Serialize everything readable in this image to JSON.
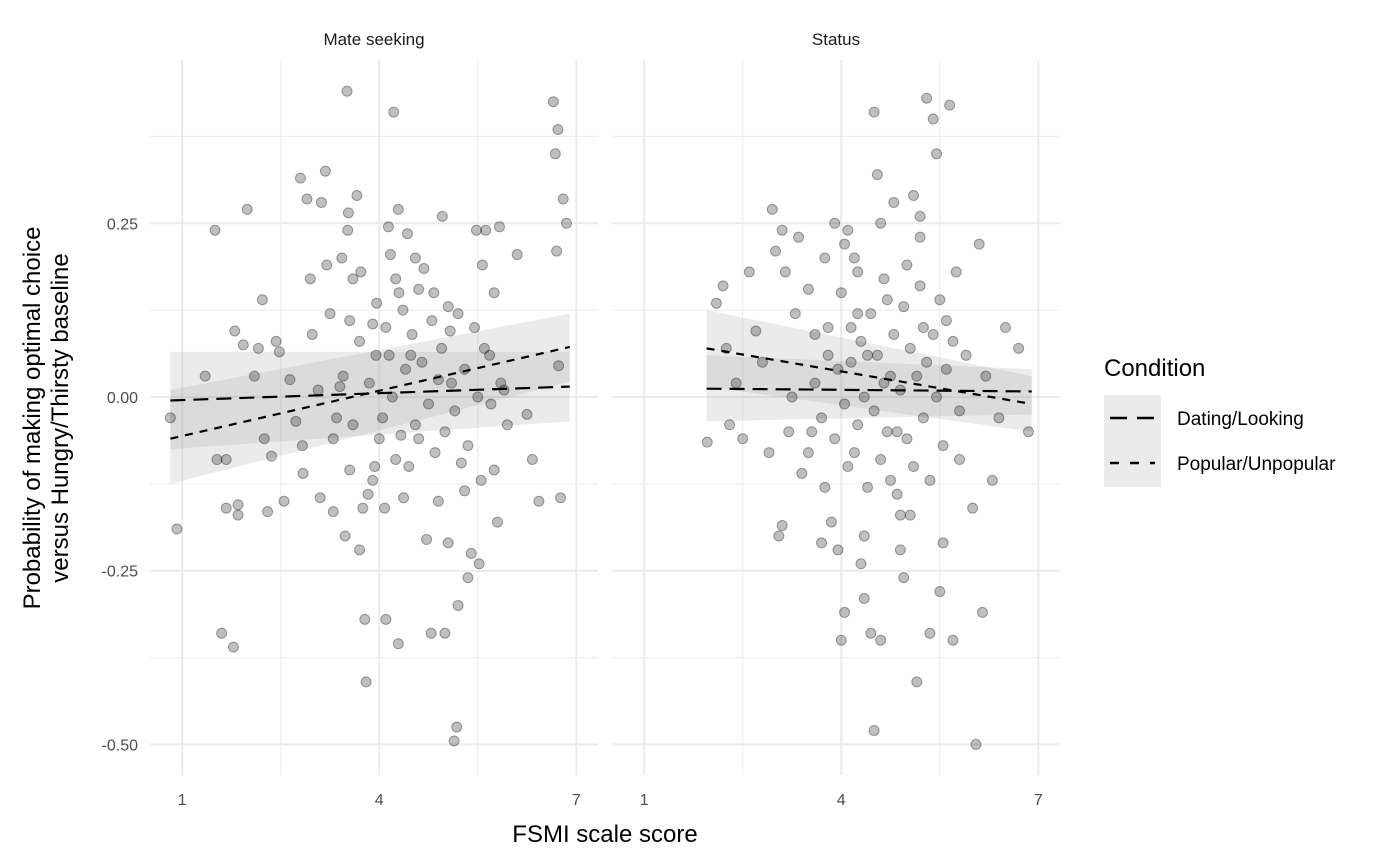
{
  "chart_data": {
    "type": "scatter",
    "xlabel": "FSMI scale score",
    "ylabel_lines": [
      "Probability of making optimal choice",
      "versus Hungry/Thirsty baseline"
    ],
    "xlim": [
      0.51,
      7.33
    ],
    "ylim": [
      -0.544,
      0.485
    ],
    "x_ticks": [
      1,
      4,
      7
    ],
    "x_tick_labels": [
      "1",
      "4",
      "7"
    ],
    "y_ticks": [
      -0.5,
      -0.25,
      0,
      0.25
    ],
    "y_tick_labels": [
      "-0.50",
      "-0.25",
      "0.00",
      "0.25"
    ],
    "grid": true,
    "legend": {
      "title": "Condition",
      "position": "right",
      "entries": [
        {
          "label": "Dating/Looking",
          "dash": "long"
        },
        {
          "label": "Popular/Unpopular",
          "dash": "short"
        }
      ]
    },
    "panels": [
      {
        "title": "Mate seeking",
        "points": [
          [
            0.82,
            -0.03
          ],
          [
            0.92,
            -0.19
          ],
          [
            1.35,
            0.03
          ],
          [
            1.5,
            0.24
          ],
          [
            1.53,
            -0.09
          ],
          [
            1.6,
            -0.34
          ],
          [
            1.67,
            -0.09
          ],
          [
            1.67,
            -0.16
          ],
          [
            1.78,
            -0.36
          ],
          [
            1.8,
            0.095
          ],
          [
            1.85,
            -0.155
          ],
          [
            1.85,
            -0.17
          ],
          [
            1.93,
            0.075
          ],
          [
            1.99,
            0.27
          ],
          [
            2.1,
            0.03
          ],
          [
            2.16,
            0.07
          ],
          [
            2.22,
            0.14
          ],
          [
            2.25,
            -0.06
          ],
          [
            2.3,
            -0.165
          ],
          [
            2.36,
            -0.085
          ],
          [
            2.43,
            0.08
          ],
          [
            2.48,
            0.065
          ],
          [
            2.55,
            -0.15
          ],
          [
            2.64,
            0.025
          ],
          [
            2.73,
            -0.035
          ],
          [
            2.8,
            0.315
          ],
          [
            2.83,
            -0.07
          ],
          [
            2.84,
            -0.11
          ],
          [
            2.9,
            0.285
          ],
          [
            2.95,
            0.17
          ],
          [
            2.98,
            0.09
          ],
          [
            3.07,
            0.01
          ],
          [
            3.1,
            -0.145
          ],
          [
            3.12,
            0.28
          ],
          [
            3.18,
            0.325
          ],
          [
            3.2,
            0.19
          ],
          [
            3.3,
            -0.165
          ],
          [
            3.35,
            -0.03
          ],
          [
            3.4,
            0.015
          ],
          [
            3.43,
            0.2
          ],
          [
            3.48,
            -0.2
          ],
          [
            3.51,
            0.44
          ],
          [
            3.52,
            0.24
          ],
          [
            3.53,
            0.265
          ],
          [
            3.55,
            -0.105
          ],
          [
            3.6,
            0.17
          ],
          [
            3.66,
            0.29
          ],
          [
            3.7,
            -0.22
          ],
          [
            3.72,
            0.18
          ],
          [
            3.75,
            -0.16
          ],
          [
            3.78,
            -0.32
          ],
          [
            3.8,
            -0.41
          ],
          [
            3.83,
            -0.14
          ],
          [
            3.9,
            0.105
          ],
          [
            3.93,
            -0.1
          ],
          [
            3.96,
            0.135
          ],
          [
            4.0,
            -0.06
          ],
          [
            4.08,
            -0.16
          ],
          [
            4.1,
            -0.32
          ],
          [
            4.14,
            0.245
          ],
          [
            4.17,
            0.205
          ],
          [
            4.22,
            0.41
          ],
          [
            4.25,
            0.17
          ],
          [
            4.29,
            0.27
          ],
          [
            4.29,
            -0.355
          ],
          [
            4.33,
            -0.055
          ],
          [
            4.36,
            0.125
          ],
          [
            4.37,
            -0.145
          ],
          [
            4.43,
            0.235
          ],
          [
            4.48,
            0.06
          ],
          [
            4.55,
            -0.04
          ],
          [
            4.6,
            0.155
          ],
          [
            4.68,
            0.185
          ],
          [
            4.72,
            -0.205
          ],
          [
            4.79,
            -0.34
          ],
          [
            4.83,
            0.15
          ],
          [
            4.9,
            0.025
          ],
          [
            4.96,
            0.26
          ],
          [
            5.0,
            -0.34
          ],
          [
            5.05,
            -0.21
          ],
          [
            5.08,
            0.095
          ],
          [
            5.14,
            -0.495
          ],
          [
            5.18,
            -0.475
          ],
          [
            5.2,
            -0.3
          ],
          [
            5.25,
            -0.095
          ],
          [
            5.3,
            -0.135
          ],
          [
            5.35,
            -0.26
          ],
          [
            5.4,
            -0.225
          ],
          [
            5.48,
            0.24
          ],
          [
            5.52,
            -0.24
          ],
          [
            5.57,
            0.19
          ],
          [
            5.62,
            0.24
          ],
          [
            5.68,
            0.06
          ],
          [
            5.75,
            -0.105
          ],
          [
            5.8,
            -0.18
          ],
          [
            5.83,
            0.245
          ],
          [
            5.9,
            0.01
          ],
          [
            5.95,
            -0.04
          ],
          [
            6.1,
            0.205
          ],
          [
            6.25,
            -0.025
          ],
          [
            6.33,
            -0.09
          ],
          [
            6.43,
            -0.15
          ],
          [
            6.65,
            0.425
          ],
          [
            6.68,
            0.35
          ],
          [
            6.7,
            0.21
          ],
          [
            6.72,
            0.385
          ],
          [
            6.73,
            0.045
          ],
          [
            6.76,
            -0.145
          ],
          [
            6.8,
            0.285
          ],
          [
            6.85,
            0.25
          ],
          [
            3.45,
            0.03
          ],
          [
            3.6,
            -0.04
          ],
          [
            3.7,
            0.08
          ],
          [
            3.85,
            0.02
          ],
          [
            3.95,
            0.06
          ],
          [
            4.05,
            -0.03
          ],
          [
            4.1,
            0.1
          ],
          [
            4.2,
            0.0
          ],
          [
            4.25,
            -0.09
          ],
          [
            4.3,
            0.15
          ],
          [
            4.4,
            0.04
          ],
          [
            4.45,
            -0.1
          ],
          [
            4.5,
            0.09
          ],
          [
            4.6,
            -0.06
          ],
          [
            4.65,
            0.05
          ],
          [
            4.75,
            -0.01
          ],
          [
            4.8,
            0.11
          ],
          [
            4.85,
            -0.08
          ],
          [
            4.95,
            0.07
          ],
          [
            5.0,
            -0.05
          ],
          [
            5.05,
            0.13
          ],
          [
            5.1,
            0.02
          ],
          [
            5.15,
            -0.02
          ],
          [
            5.2,
            0.12
          ],
          [
            5.3,
            0.04
          ],
          [
            5.35,
            -0.07
          ],
          [
            5.45,
            0.1
          ],
          [
            5.5,
            0.0
          ],
          [
            5.55,
            -0.12
          ],
          [
            5.6,
            0.07
          ],
          [
            5.7,
            -0.01
          ],
          [
            5.75,
            0.15
          ],
          [
            5.85,
            0.02
          ],
          [
            3.3,
            -0.06
          ],
          [
            3.25,
            0.12
          ],
          [
            3.55,
            0.11
          ],
          [
            3.9,
            -0.12
          ],
          [
            4.15,
            0.06
          ],
          [
            4.55,
            0.2
          ],
          [
            4.9,
            -0.15
          ]
        ],
        "lines": [
          {
            "condition": "Dating/Looking",
            "x": [
              0.82,
              6.9
            ],
            "y": [
              -0.005,
              0.015
            ],
            "ci_low": [
              -0.075,
              -0.035
            ],
            "ci_high": [
              0.065,
              0.065
            ]
          },
          {
            "condition": "Popular/Unpopular",
            "x": [
              0.82,
              6.9
            ],
            "y": [
              -0.06,
              0.072
            ],
            "ci_low": [
              -0.125,
              0.022
            ],
            "ci_high": [
              0.01,
              0.12
            ]
          }
        ]
      },
      {
        "title": "Status",
        "points": [
          [
            1.96,
            -0.065
          ],
          [
            2.1,
            0.135
          ],
          [
            2.2,
            0.16
          ],
          [
            2.25,
            0.07
          ],
          [
            2.3,
            -0.04
          ],
          [
            2.4,
            0.02
          ],
          [
            2.5,
            -0.06
          ],
          [
            2.6,
            0.18
          ],
          [
            2.7,
            0.095
          ],
          [
            2.8,
            0.05
          ],
          [
            2.9,
            -0.08
          ],
          [
            2.95,
            0.27
          ],
          [
            3.0,
            0.21
          ],
          [
            3.05,
            -0.2
          ],
          [
            3.1,
            0.24
          ],
          [
            3.1,
            -0.185
          ],
          [
            3.15,
            0.18
          ],
          [
            3.2,
            -0.05
          ],
          [
            3.25,
            0.0
          ],
          [
            3.3,
            0.12
          ],
          [
            3.35,
            0.23
          ],
          [
            3.4,
            -0.11
          ],
          [
            3.5,
            0.155
          ],
          [
            3.55,
            -0.05
          ],
          [
            3.6,
            0.09
          ],
          [
            3.7,
            -0.21
          ],
          [
            3.75,
            0.2
          ],
          [
            3.8,
            0.06
          ],
          [
            3.85,
            -0.18
          ],
          [
            3.9,
            0.25
          ],
          [
            3.95,
            -0.22
          ],
          [
            4.0,
            -0.35
          ],
          [
            4.05,
            -0.31
          ],
          [
            4.1,
            0.24
          ],
          [
            4.15,
            0.1
          ],
          [
            4.2,
            -0.08
          ],
          [
            4.25,
            0.18
          ],
          [
            4.3,
            -0.24
          ],
          [
            4.35,
            -0.29
          ],
          [
            4.4,
            0.06
          ],
          [
            4.45,
            -0.34
          ],
          [
            4.5,
            0.41
          ],
          [
            4.5,
            -0.48
          ],
          [
            4.55,
            0.32
          ],
          [
            4.6,
            -0.35
          ],
          [
            4.65,
            0.02
          ],
          [
            4.7,
            0.14
          ],
          [
            4.75,
            -0.12
          ],
          [
            4.8,
            0.28
          ],
          [
            4.85,
            -0.05
          ],
          [
            4.9,
            -0.22
          ],
          [
            4.95,
            -0.26
          ],
          [
            5.0,
            0.19
          ],
          [
            5.05,
            -0.17
          ],
          [
            5.1,
            0.29
          ],
          [
            5.15,
            -0.41
          ],
          [
            5.2,
            0.23
          ],
          [
            5.25,
            0.1
          ],
          [
            5.3,
            0.43
          ],
          [
            5.35,
            -0.34
          ],
          [
            5.4,
            0.4
          ],
          [
            5.45,
            0.35
          ],
          [
            5.5,
            -0.28
          ],
          [
            5.55,
            -0.21
          ],
          [
            5.6,
            0.11
          ],
          [
            5.65,
            0.42
          ],
          [
            5.7,
            -0.35
          ],
          [
            5.75,
            0.18
          ],
          [
            5.8,
            -0.09
          ],
          [
            5.9,
            0.06
          ],
          [
            6.0,
            -0.16
          ],
          [
            6.05,
            -0.5
          ],
          [
            6.1,
            0.22
          ],
          [
            6.15,
            -0.31
          ],
          [
            6.2,
            0.03
          ],
          [
            6.3,
            -0.12
          ],
          [
            6.4,
            -0.03
          ],
          [
            6.5,
            0.1
          ],
          [
            6.7,
            0.07
          ],
          [
            6.85,
            -0.05
          ],
          [
            3.6,
            0.02
          ],
          [
            3.7,
            -0.03
          ],
          [
            3.8,
            0.1
          ],
          [
            3.9,
            -0.06
          ],
          [
            3.95,
            0.04
          ],
          [
            4.0,
            0.15
          ],
          [
            4.05,
            -0.01
          ],
          [
            4.1,
            -0.1
          ],
          [
            4.15,
            0.05
          ],
          [
            4.2,
            0.2
          ],
          [
            4.25,
            -0.04
          ],
          [
            4.3,
            0.08
          ],
          [
            4.35,
            0.0
          ],
          [
            4.4,
            -0.13
          ],
          [
            4.45,
            0.12
          ],
          [
            4.5,
            -0.02
          ],
          [
            4.55,
            0.06
          ],
          [
            4.6,
            -0.09
          ],
          [
            4.65,
            0.17
          ],
          [
            4.7,
            -0.05
          ],
          [
            4.75,
            0.03
          ],
          [
            4.8,
            0.09
          ],
          [
            4.85,
            -0.14
          ],
          [
            4.9,
            0.01
          ],
          [
            4.95,
            0.13
          ],
          [
            5.0,
            -0.06
          ],
          [
            5.05,
            0.07
          ],
          [
            5.1,
            -0.1
          ],
          [
            5.15,
            0.03
          ],
          [
            5.2,
            0.16
          ],
          [
            5.25,
            -0.03
          ],
          [
            5.3,
            0.05
          ],
          [
            5.35,
            -0.12
          ],
          [
            5.4,
            0.09
          ],
          [
            5.45,
            0.0
          ],
          [
            5.5,
            0.14
          ],
          [
            5.55,
            -0.07
          ],
          [
            5.6,
            0.04
          ],
          [
            5.7,
            0.08
          ],
          [
            5.8,
            -0.02
          ],
          [
            3.75,
            -0.13
          ],
          [
            4.05,
            0.22
          ],
          [
            4.35,
            -0.2
          ],
          [
            4.6,
            0.25
          ],
          [
            4.9,
            -0.17
          ],
          [
            5.2,
            0.26
          ],
          [
            3.5,
            -0.08
          ],
          [
            4.25,
            0.12
          ]
        ],
        "lines": [
          {
            "condition": "Dating/Looking",
            "x": [
              1.95,
              6.9
            ],
            "y": [
              0.012,
              0.008
            ],
            "ci_low": [
              -0.035,
              -0.025
            ],
            "ci_high": [
              0.06,
              0.04
            ]
          },
          {
            "condition": "Popular/Unpopular",
            "x": [
              1.95,
              6.9
            ],
            "y": [
              0.07,
              -0.01
            ],
            "ci_low": [
              0.015,
              -0.05
            ],
            "ci_high": [
              0.125,
              0.03
            ]
          }
        ]
      }
    ]
  }
}
